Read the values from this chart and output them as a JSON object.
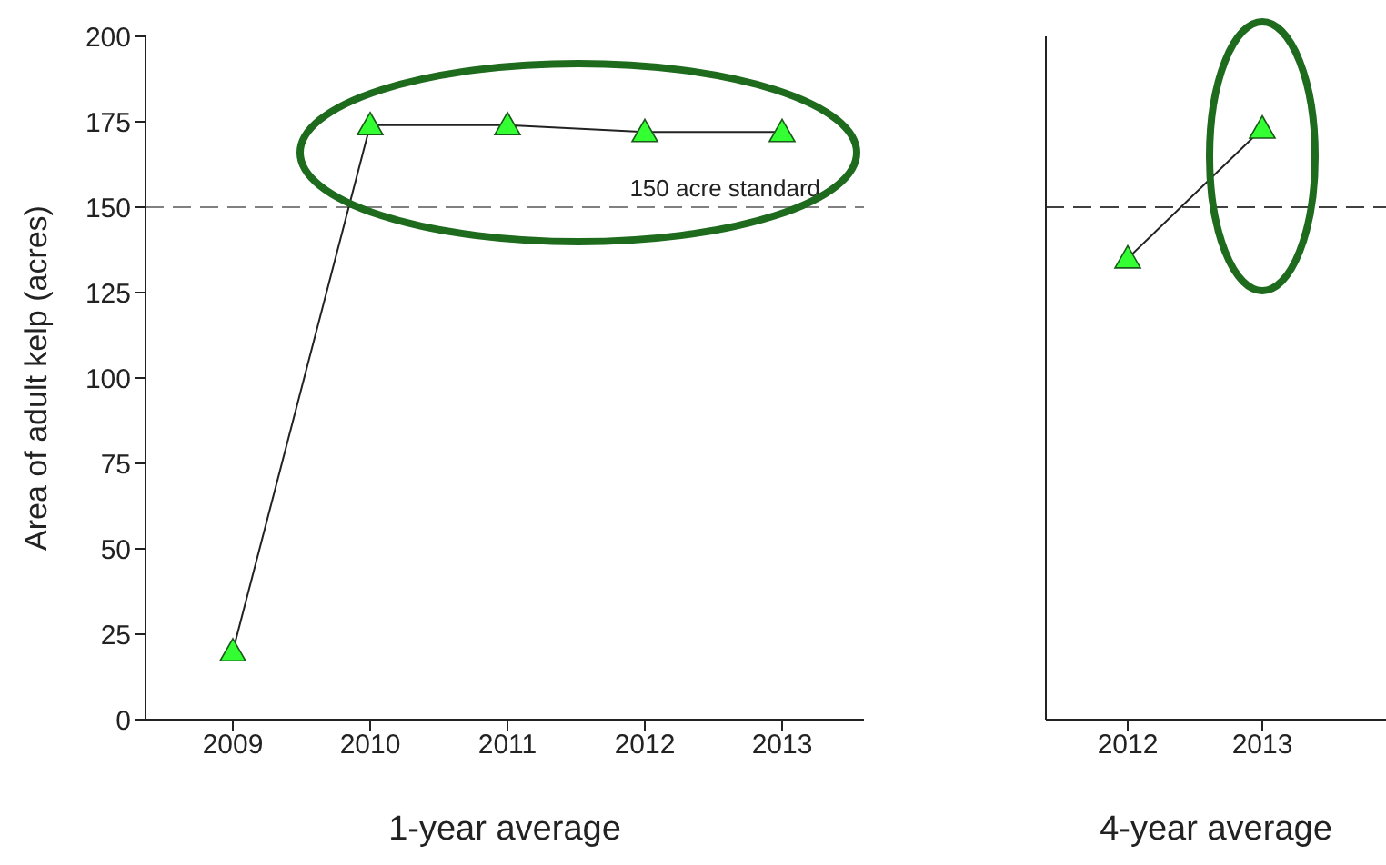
{
  "chart_data": [
    {
      "type": "line",
      "categories": [
        "2009",
        "2010",
        "2011",
        "2012",
        "2013"
      ],
      "xlabel": "1-year average",
      "ylabel": "Area of adult kelp (acres)",
      "ylim": [
        0,
        200
      ],
      "yticks": [
        0,
        25,
        50,
        75,
        100,
        125,
        150,
        175,
        200
      ],
      "marker": "triangle",
      "grid": false,
      "legend": false,
      "series": [
        {
          "color": "#33ff33",
          "values": [
            20,
            174,
            174,
            172,
            172
          ]
        }
      ],
      "ref_lines": [
        {
          "axis": "y",
          "value": 150,
          "label": "150 acre standard",
          "line_style": "dashed",
          "color": "#808080"
        }
      ]
    },
    {
      "type": "line",
      "categories": [
        "2012",
        "2013"
      ],
      "xlabel": "4-year average",
      "ylim": [
        0,
        200
      ],
      "yticks": [
        0,
        25,
        50,
        75,
        100,
        125,
        150,
        175,
        200
      ],
      "tick_labels": "x",
      "marker": "triangle",
      "grid": false,
      "legend": false,
      "series": [
        {
          "color": "#33ff33",
          "values": [
            135,
            173
          ]
        }
      ],
      "ref_lines": [
        {
          "axis": "y",
          "value": 150,
          "label": null,
          "line_style": "dashed",
          "color": "#404040"
        }
      ]
    }
  ]
}
